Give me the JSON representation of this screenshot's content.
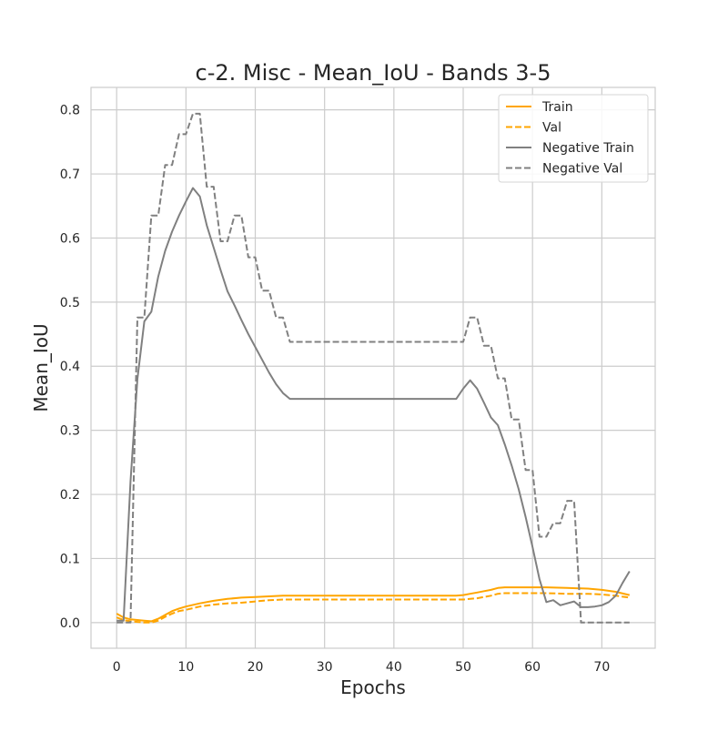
{
  "chart_data": {
    "type": "line",
    "title": "c-2. Misc - Mean_IoU - Bands 3-5",
    "xlabel": "Epochs",
    "ylabel": "Mean_IoU",
    "xlim": [
      -3.7,
      77.7
    ],
    "ylim": [
      -0.04,
      0.835
    ],
    "xticks": [
      0,
      10,
      20,
      30,
      40,
      50,
      60,
      70
    ],
    "yticks": [
      0.0,
      0.1,
      0.2,
      0.3,
      0.4,
      0.5,
      0.6,
      0.7,
      0.8
    ],
    "grid": true,
    "legend_position": "top-right",
    "series": [
      {
        "name": "Train",
        "color": "#FFA500",
        "dash": "solid",
        "x": [
          0,
          1,
          2,
          3,
          4,
          5,
          6,
          7,
          8,
          9,
          10,
          12,
          14,
          16,
          18,
          20,
          22,
          24,
          26,
          30,
          35,
          40,
          45,
          49,
          50,
          51,
          52,
          53,
          54,
          55,
          56,
          57,
          60,
          62,
          65,
          68,
          70,
          72,
          74
        ],
        "y": [
          0.014,
          0.008,
          0.005,
          0.004,
          0.003,
          0.002,
          0.006,
          0.012,
          0.018,
          0.022,
          0.025,
          0.03,
          0.034,
          0.037,
          0.039,
          0.04,
          0.041,
          0.042,
          0.042,
          0.042,
          0.042,
          0.042,
          0.042,
          0.042,
          0.043,
          0.045,
          0.047,
          0.049,
          0.051,
          0.054,
          0.055,
          0.055,
          0.055,
          0.055,
          0.054,
          0.053,
          0.051,
          0.048,
          0.043
        ]
      },
      {
        "name": "Val",
        "color": "#FFA500",
        "dash": "dashed",
        "x": [
          0,
          1,
          2,
          3,
          4,
          5,
          6,
          7,
          8,
          9,
          10,
          12,
          14,
          16,
          18,
          20,
          22,
          24,
          26,
          30,
          35,
          40,
          45,
          49,
          50,
          51,
          52,
          53,
          54,
          55,
          56,
          57,
          60,
          62,
          65,
          68,
          70,
          72,
          74
        ],
        "y": [
          0.008,
          0.004,
          0.002,
          0.001,
          0.0,
          0.0,
          0.003,
          0.009,
          0.014,
          0.018,
          0.02,
          0.025,
          0.028,
          0.03,
          0.031,
          0.033,
          0.035,
          0.036,
          0.036,
          0.036,
          0.036,
          0.036,
          0.036,
          0.036,
          0.036,
          0.037,
          0.038,
          0.04,
          0.042,
          0.045,
          0.046,
          0.046,
          0.046,
          0.046,
          0.045,
          0.045,
          0.044,
          0.042,
          0.039
        ]
      },
      {
        "name": "Negative Train",
        "color": "#808080",
        "dash": "solid",
        "x": [
          0,
          1,
          2,
          3,
          4,
          5,
          6,
          7,
          8,
          9,
          10,
          11,
          12,
          13,
          14,
          15,
          16,
          17,
          18,
          19,
          20,
          21,
          22,
          23,
          24,
          25,
          30,
          35,
          40,
          45,
          49,
          50,
          51,
          52,
          53,
          54,
          55,
          56,
          57,
          58,
          59,
          60,
          61,
          62,
          63,
          64,
          65,
          66,
          67,
          68,
          69,
          70,
          71,
          72,
          73,
          74
        ],
        "y": [
          0.003,
          0.003,
          0.22,
          0.38,
          0.47,
          0.485,
          0.54,
          0.58,
          0.61,
          0.635,
          0.657,
          0.678,
          0.665,
          0.62,
          0.585,
          0.55,
          0.517,
          0.495,
          0.472,
          0.45,
          0.43,
          0.41,
          0.39,
          0.372,
          0.358,
          0.349,
          0.349,
          0.349,
          0.349,
          0.349,
          0.349,
          0.365,
          0.378,
          0.365,
          0.343,
          0.32,
          0.308,
          0.278,
          0.245,
          0.208,
          0.165,
          0.118,
          0.068,
          0.032,
          0.035,
          0.027,
          0.03,
          0.033,
          0.024,
          0.024,
          0.025,
          0.027,
          0.032,
          0.042,
          0.062,
          0.08
        ]
      },
      {
        "name": "Negative Val",
        "color": "#808080",
        "dash": "dashed",
        "x": [
          0,
          1,
          2,
          3,
          4,
          5,
          6,
          7,
          8,
          9,
          10,
          11,
          12,
          13,
          14,
          15,
          16,
          17,
          18,
          19,
          20,
          21,
          22,
          23,
          24,
          25,
          30,
          35,
          40,
          45,
          50,
          51,
          52,
          53,
          54,
          55,
          56,
          57,
          58,
          59,
          60,
          61,
          62,
          63,
          64,
          65,
          66,
          67,
          68,
          69,
          70,
          71,
          72,
          73,
          74
        ],
        "y": [
          0.0,
          0.0,
          0.0,
          0.476,
          0.476,
          0.635,
          0.635,
          0.714,
          0.714,
          0.762,
          0.762,
          0.794,
          0.794,
          0.68,
          0.68,
          0.595,
          0.595,
          0.635,
          0.635,
          0.57,
          0.57,
          0.518,
          0.518,
          0.476,
          0.476,
          0.438,
          0.438,
          0.438,
          0.438,
          0.438,
          0.438,
          0.476,
          0.476,
          0.432,
          0.432,
          0.381,
          0.381,
          0.317,
          0.317,
          0.238,
          0.238,
          0.134,
          0.134,
          0.155,
          0.155,
          0.19,
          0.19,
          0.0,
          0.0,
          0.0,
          0.0,
          0.0,
          0.0,
          0.0,
          0.0
        ]
      }
    ]
  }
}
